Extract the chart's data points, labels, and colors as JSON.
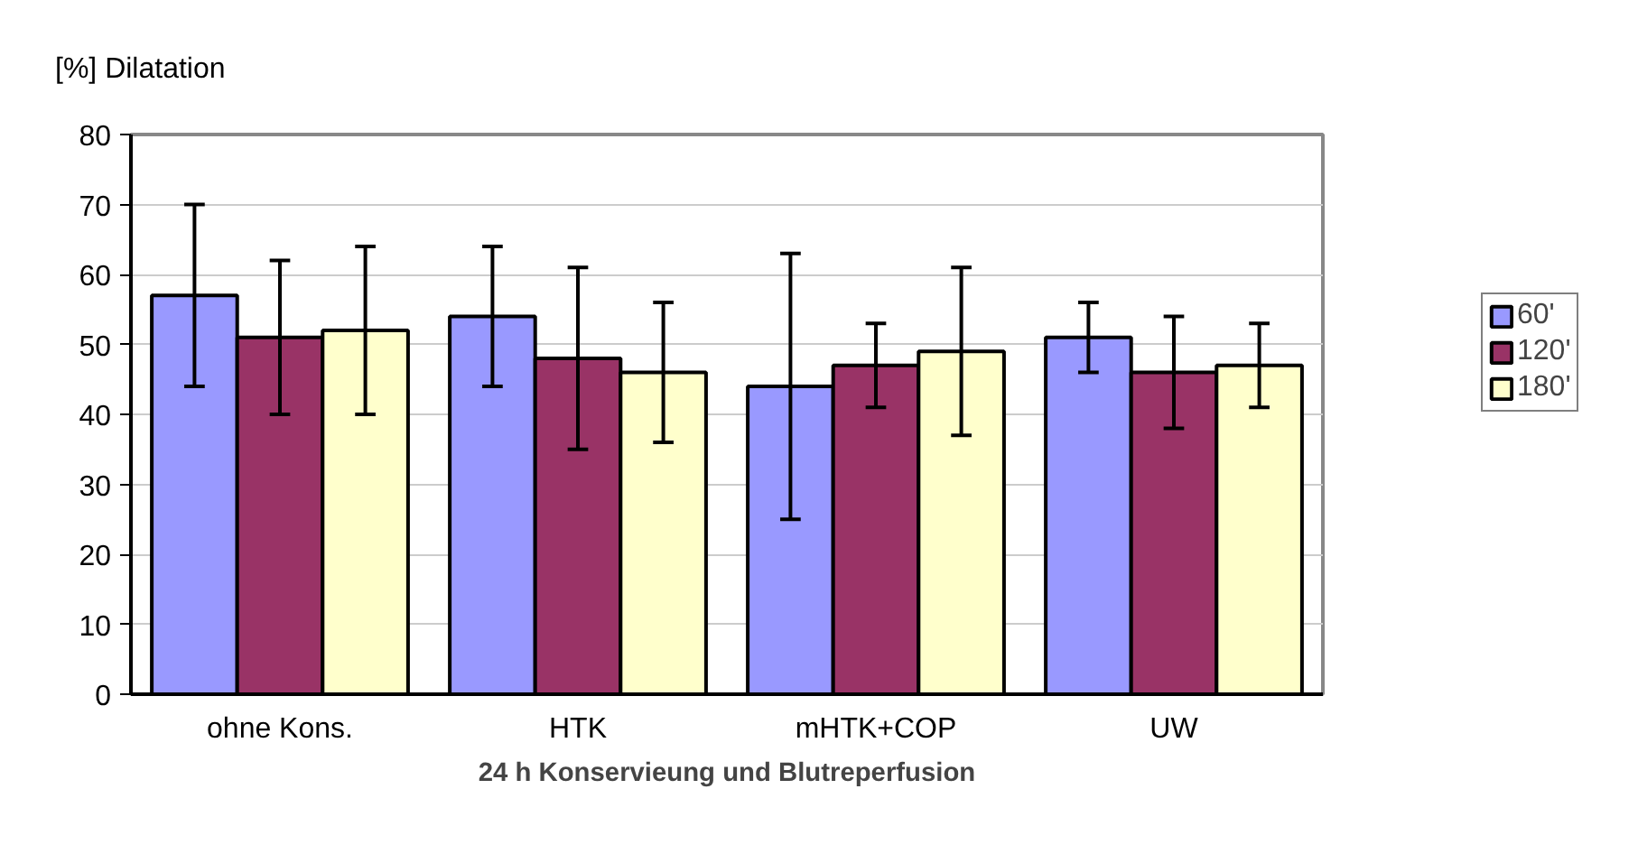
{
  "chart_data": {
    "type": "bar",
    "ylabel": "[%] Dilatation",
    "xlabel": "24 h Konservieung und Blutreperfusion",
    "categories": [
      "ohne Kons.",
      "HTK",
      "mHTK+COP",
      "UW"
    ],
    "series": [
      {
        "name": "60'",
        "color": "#9999ff",
        "values": [
          57,
          54,
          44,
          51
        ],
        "errors": [
          13,
          10,
          19,
          5
        ]
      },
      {
        "name": "120'",
        "color": "#993366",
        "values": [
          51,
          48,
          47,
          46
        ],
        "errors": [
          11,
          13,
          6,
          8
        ]
      },
      {
        "name": "180'",
        "color": "#ffffcc",
        "values": [
          52,
          46,
          49,
          47
        ],
        "errors": [
          12,
          10,
          12,
          6
        ]
      }
    ],
    "ylim": [
      0,
      80
    ],
    "yticks": [
      0,
      10,
      20,
      30,
      40,
      50,
      60,
      70,
      80
    ],
    "grid": "y",
    "legend": "top right"
  }
}
